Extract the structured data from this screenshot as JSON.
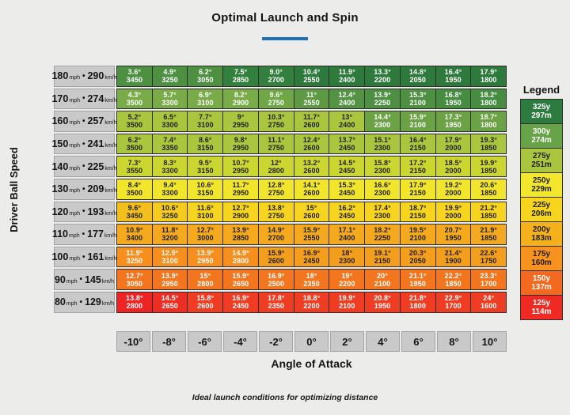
{
  "accent": {
    "underline": "#1d70b7",
    "header_bg": "#c9c9c9",
    "page_bg": "#ececea"
  },
  "chart_data": {
    "type": "heatmap",
    "title": "Optimal Launch and Spin",
    "xlabel": "Angle of Attack",
    "ylabel": "Driver Ball Speed",
    "footnote": "Ideal launch conditions for optimizing distance",
    "cell_format": "top: launch angle (degrees), bottom: spin rate (rpm)",
    "x_categories": [
      "-10°",
      "-8°",
      "-6°",
      "-4°",
      "-2°",
      "0°",
      "2°",
      "4°",
      "6°",
      "8°",
      "10°"
    ],
    "units": {
      "primary": "mph",
      "secondary": "km/h",
      "separator": "•"
    },
    "rows": [
      {
        "mph": "180",
        "kmh": "290",
        "launch": [
          "3.6°",
          "4.9°",
          "6.2°",
          "7.5°",
          "9.0°",
          "10.4°",
          "11.9°",
          "13.3°",
          "14.8°",
          "16.4°",
          "17.9°"
        ],
        "spin": [
          "3450",
          "3250",
          "3050",
          "2850",
          "2700",
          "2550",
          "2400",
          "2200",
          "2050",
          "1950",
          "1800"
        ],
        "bg": [
          "#4d9042",
          "#4d9042",
          "#4d9042",
          "#337f3d",
          "#337f3d",
          "#2d7a3c",
          "#2d7a3c",
          "#2d7a3c",
          "#2d7a3c",
          "#2d7a3c",
          "#2d7a3c"
        ],
        "ink": "wwwwwwwwwww"
      },
      {
        "mph": "170",
        "kmh": "274",
        "launch": [
          "4.3°",
          "5.7°",
          "6.9°",
          "8.2°",
          "9.6°",
          "11°",
          "12.4°",
          "13.9°",
          "15.3°",
          "16.8°",
          "18.2°"
        ],
        "spin": [
          "3500",
          "3300",
          "3100",
          "2900",
          "2750",
          "2550",
          "2400",
          "2250",
          "2100",
          "1950",
          "1800"
        ],
        "bg": [
          "#79ac48",
          "#79ac48",
          "#79ac48",
          "#79ac48",
          "#6fa746",
          "#5d9a43",
          "#539343",
          "#4d9042",
          "#4d9042",
          "#478d41",
          "#478d41"
        ],
        "ink": "wwwwwwwwwww"
      },
      {
        "mph": "160",
        "kmh": "257",
        "launch": [
          "5.2°",
          "6.5°",
          "7.7°",
          "9°",
          "10.3°",
          "11.7°",
          "13°",
          "14.4°",
          "15.9°",
          "17.3°",
          "18.7°"
        ],
        "spin": [
          "3500",
          "3300",
          "3100",
          "2950",
          "2750",
          "2600",
          "2400",
          "2300",
          "2100",
          "1950",
          "1800"
        ],
        "bg": [
          "#a9c63e",
          "#a9c63e",
          "#a9c63e",
          "#a9c63e",
          "#a9c63e",
          "#a9c63e",
          "#a9c63e",
          "#6ba245",
          "#6ba245",
          "#6ba245",
          "#6ba245"
        ],
        "ink": "dddddddwwww"
      },
      {
        "mph": "150",
        "kmh": "241",
        "launch": [
          "6.2°",
          "7.4°",
          "8.6°",
          "9.8°",
          "11.1°",
          "12.4°",
          "13.7°",
          "15.1°",
          "16.4°",
          "17.9°",
          "19.3°"
        ],
        "spin": [
          "3500",
          "3350",
          "3150",
          "2950",
          "2750",
          "2600",
          "2450",
          "2300",
          "2150",
          "2000",
          "1850"
        ],
        "bg": [
          "#a9c63e",
          "#a9c63e",
          "#a9c63e",
          "#a9c63e",
          "#a9c63e",
          "#a9c63e",
          "#a9c63e",
          "#a9c63e",
          "#a9c63e",
          "#a9c63e",
          "#a9c63e"
        ],
        "ink": "ddddddddddd"
      },
      {
        "mph": "140",
        "kmh": "225",
        "launch": [
          "7.3°",
          "8.3°",
          "9.5°",
          "10.7°",
          "12°",
          "13.2°",
          "14.5°",
          "15.8°",
          "17.2°",
          "18.5°",
          "19.9°"
        ],
        "spin": [
          "3550",
          "3300",
          "3150",
          "2950",
          "2800",
          "2600",
          "2450",
          "2300",
          "2150",
          "2000",
          "1850"
        ],
        "bg": [
          "#cbd630",
          "#cbd630",
          "#cbd630",
          "#cbd630",
          "#cbd630",
          "#cbd630",
          "#cbd630",
          "#cbd630",
          "#cbd630",
          "#cbd630",
          "#cbd630"
        ],
        "ink": "ddddddddddd"
      },
      {
        "mph": "130",
        "kmh": "209",
        "launch": [
          "8.4°",
          "9.4°",
          "10.6°",
          "11.7°",
          "12.8°",
          "14.1°",
          "15.3°",
          "16.6°",
          "17.9°",
          "19.2°",
          "20.6°"
        ],
        "spin": [
          "3500",
          "3300",
          "3150",
          "2950",
          "2750",
          "2600",
          "2450",
          "2300",
          "2150",
          "2000",
          "1850"
        ],
        "bg": [
          "#f2e62c",
          "#f2e62c",
          "#f2e62c",
          "#f2e62c",
          "#f2e62c",
          "#f2e62c",
          "#f2e62c",
          "#f2e62c",
          "#f2e62c",
          "#f2e62c",
          "#f2e62c"
        ],
        "ink": "ddddddddddd"
      },
      {
        "mph": "120",
        "kmh": "193",
        "launch": [
          "9.6°",
          "10.6°",
          "11.6°",
          "12.7°",
          "13.8°",
          "15°",
          "16.2°",
          "17.4°",
          "18.7°",
          "19.9°",
          "21.2°"
        ],
        "spin": [
          "3450",
          "3250",
          "3100",
          "2900",
          "2750",
          "2600",
          "2450",
          "2300",
          "2150",
          "2000",
          "1850"
        ],
        "bg": [
          "#f3bf1e",
          "#f5cb1f",
          "#f6d41f",
          "#f6d41f",
          "#f6d41f",
          "#f6d41f",
          "#f6d41f",
          "#f6d41f",
          "#f6d41f",
          "#f6d41f",
          "#f6d41f"
        ],
        "ink": "ddddddddddd"
      },
      {
        "mph": "110",
        "kmh": "177",
        "launch": [
          "10.9°",
          "11.8°",
          "12.7°",
          "13.9°",
          "14.9°",
          "15.9°",
          "17.1°",
          "18.2°",
          "19.5°",
          "20.7°",
          "21.9°"
        ],
        "spin": [
          "3400",
          "3200",
          "3000",
          "2850",
          "2700",
          "2550",
          "2400",
          "2250",
          "2100",
          "1950",
          "1850"
        ],
        "bg": [
          "#f4a91f",
          "#f4a91f",
          "#f4a91f",
          "#f4a91f",
          "#f4a91f",
          "#f4a91f",
          "#f4a91f",
          "#f4a91f",
          "#f4a91f",
          "#f4a91f",
          "#f4a91f"
        ],
        "ink": "ddddddddddd"
      },
      {
        "mph": "100",
        "kmh": "161",
        "launch": [
          "11.9°",
          "12.9°",
          "13.9°",
          "14.9°",
          "15.9°",
          "16.9°",
          "18°",
          "19.1°",
          "20.3°",
          "21.4°",
          "22.6°"
        ],
        "spin": [
          "3250",
          "3100",
          "2950",
          "2800",
          "2600",
          "2450",
          "2300",
          "2150",
          "2050",
          "1900",
          "1750"
        ],
        "bg": [
          "#f68f1e",
          "#f68f1e",
          "#f68f1e",
          "#f68f1e",
          "#f49e1d",
          "#f49e1d",
          "#f49e1d",
          "#f49e1d",
          "#f49e1d",
          "#f49e1d",
          "#f49e1d"
        ],
        "ink": "wwwwddddddd"
      },
      {
        "mph": "90",
        "kmh": "145",
        "launch": [
          "12.7°",
          "13.9°",
          "15°",
          "15.9°",
          "16.9°",
          "18°",
          "19°",
          "20°",
          "21.1°",
          "22.2°",
          "23.3°"
        ],
        "spin": [
          "3050",
          "2950",
          "2800",
          "2650",
          "2500",
          "2350",
          "2200",
          "2100",
          "1950",
          "1850",
          "1700"
        ],
        "bg": [
          "#f3761f",
          "#f3761f",
          "#f3761f",
          "#f3761f",
          "#f3761f",
          "#f3761f",
          "#f3761f",
          "#f3761f",
          "#f3761f",
          "#f3761f",
          "#f3761f"
        ],
        "ink": "wwwwwwwwwww"
      },
      {
        "mph": "80",
        "kmh": "129",
        "launch": [
          "13.8°",
          "14.5°",
          "15.8°",
          "16.9°",
          "17.8°",
          "18.8°",
          "19.9°",
          "20.8°",
          "21.8°",
          "22.9°",
          "24°"
        ],
        "spin": [
          "2800",
          "2650",
          "2600",
          "2450",
          "2350",
          "2200",
          "2100",
          "1950",
          "1800",
          "1700",
          "1600"
        ],
        "bg": [
          "#ec2424",
          "#ed2e24",
          "#ef3d23",
          "#ef3d23",
          "#ef3d23",
          "#ef3d23",
          "#ef3d23",
          "#ef3d23",
          "#ef3d23",
          "#ef3d23",
          "#ef3d23"
        ],
        "ink": "wwwwwwwwwww"
      }
    ],
    "legend": {
      "title": "Legend",
      "items": [
        {
          "yards": "325y",
          "meters": "297m",
          "color": "#2d7b3e",
          "ink": "w"
        },
        {
          "yards": "300y",
          "meters": "274m",
          "color": "#67a447",
          "ink": "w"
        },
        {
          "yards": "275y",
          "meters": "251m",
          "color": "#a9c63e",
          "ink": "d"
        },
        {
          "yards": "250y",
          "meters": "229m",
          "color": "#f2e72d",
          "ink": "d"
        },
        {
          "yards": "225y",
          "meters": "206m",
          "color": "#f7d51e",
          "ink": "d"
        },
        {
          "yards": "200y",
          "meters": "183m",
          "color": "#f5b11c",
          "ink": "d"
        },
        {
          "yards": "175y",
          "meters": "160m",
          "color": "#f6921d",
          "ink": "d"
        },
        {
          "yards": "150y",
          "meters": "137m",
          "color": "#f2691f",
          "ink": "w"
        },
        {
          "yards": "125y",
          "meters": "114m",
          "color": "#ee2a23",
          "ink": "w"
        }
      ]
    }
  }
}
